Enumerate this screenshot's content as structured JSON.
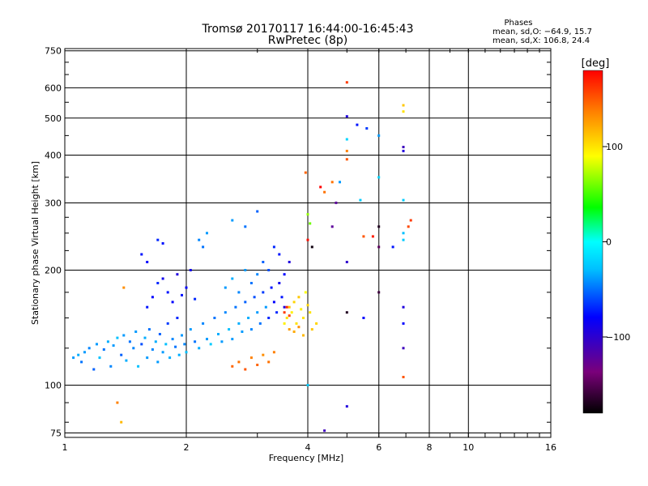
{
  "chart_data": {
    "type": "scatter",
    "title": "Tromsø 20170117 16:44:00-16:45:43",
    "subtitle": "RwPretec (8p)",
    "xlabel": "Frequency [MHz]",
    "ylabel": "Stationary phase Virtual Height [km]",
    "x_scale": "log",
    "y_scale": "log",
    "xlim": [
      1,
      16
    ],
    "ylim": [
      73,
      760
    ],
    "x_ticks": [
      1,
      2,
      4,
      6,
      8,
      10,
      16
    ],
    "x_tick_labels": [
      "1",
      "2",
      "4",
      "6",
      "8",
      "10",
      "16"
    ],
    "y_ticks": [
      75,
      100,
      200,
      300,
      400,
      500,
      600,
      750
    ],
    "y_tick_labels": [
      "75",
      "100",
      "200",
      "300",
      "400",
      "500",
      "600",
      "750"
    ],
    "grid": true,
    "colorbar": {
      "label": "[deg]",
      "range": [
        -180,
        180
      ],
      "ticks": [
        100,
        0,
        -100
      ],
      "tick_labels": [
        "100",
        "0",
        "−100"
      ],
      "colors": [
        "#000000",
        "#800080",
        "#0000ff",
        "#00ffff",
        "#00ff00",
        "#ffff00",
        "#ff8000",
        "#ff0000"
      ]
    },
    "phase_stats": {
      "header": "Phases",
      "line_o": "mean, sd,O: −64.9, 15.7",
      "line_x": "mean, sd,X: 106.8, 24.4"
    },
    "points": [
      {
        "f": 1.05,
        "h": 118,
        "p": -60
      },
      {
        "f": 1.08,
        "h": 120,
        "p": -55
      },
      {
        "f": 1.1,
        "h": 115,
        "p": -70
      },
      {
        "f": 1.12,
        "h": 122,
        "p": -60
      },
      {
        "f": 1.15,
        "h": 125,
        "p": -65
      },
      {
        "f": 1.18,
        "h": 110,
        "p": -75
      },
      {
        "f": 1.2,
        "h": 128,
        "p": -60
      },
      {
        "f": 1.22,
        "h": 118,
        "p": -50
      },
      {
        "f": 1.25,
        "h": 124,
        "p": -70
      },
      {
        "f": 1.28,
        "h": 130,
        "p": -55
      },
      {
        "f": 1.3,
        "h": 112,
        "p": -65
      },
      {
        "f": 1.32,
        "h": 127,
        "p": -60
      },
      {
        "f": 1.35,
        "h": 133,
        "p": -50
      },
      {
        "f": 1.38,
        "h": 120,
        "p": -75
      },
      {
        "f": 1.4,
        "h": 135,
        "p": -60
      },
      {
        "f": 1.42,
        "h": 116,
        "p": -55
      },
      {
        "f": 1.45,
        "h": 130,
        "p": -70
      },
      {
        "f": 1.48,
        "h": 125,
        "p": -65
      },
      {
        "f": 1.5,
        "h": 138,
        "p": -60
      },
      {
        "f": 1.52,
        "h": 112,
        "p": -50
      },
      {
        "f": 1.55,
        "h": 128,
        "p": -80
      },
      {
        "f": 1.58,
        "h": 133,
        "p": -55
      },
      {
        "f": 1.6,
        "h": 118,
        "p": -60
      },
      {
        "f": 1.62,
        "h": 140,
        "p": -70
      },
      {
        "f": 1.65,
        "h": 124,
        "p": -65
      },
      {
        "f": 1.68,
        "h": 130,
        "p": -55
      },
      {
        "f": 1.7,
        "h": 115,
        "p": -60
      },
      {
        "f": 1.72,
        "h": 136,
        "p": -75
      },
      {
        "f": 1.75,
        "h": 122,
        "p": -60
      },
      {
        "f": 1.78,
        "h": 128,
        "p": -50
      },
      {
        "f": 1.8,
        "h": 145,
        "p": -85
      },
      {
        "f": 1.82,
        "h": 118,
        "p": -55
      },
      {
        "f": 1.85,
        "h": 132,
        "p": -65
      },
      {
        "f": 1.88,
        "h": 126,
        "p": -70
      },
      {
        "f": 1.9,
        "h": 150,
        "p": -90
      },
      {
        "f": 1.92,
        "h": 120,
        "p": -55
      },
      {
        "f": 1.95,
        "h": 135,
        "p": -60
      },
      {
        "f": 1.98,
        "h": 128,
        "p": -65
      },
      {
        "f": 2.0,
        "h": 122,
        "p": -50
      },
      {
        "f": 2.05,
        "h": 140,
        "p": -60
      },
      {
        "f": 2.1,
        "h": 130,
        "p": -70
      },
      {
        "f": 2.15,
        "h": 125,
        "p": -55
      },
      {
        "f": 2.2,
        "h": 145,
        "p": -65
      },
      {
        "f": 2.25,
        "h": 132,
        "p": -60
      },
      {
        "f": 2.3,
        "h": 128,
        "p": -45
      },
      {
        "f": 2.35,
        "h": 150,
        "p": -70
      },
      {
        "f": 2.4,
        "h": 136,
        "p": -55
      },
      {
        "f": 2.45,
        "h": 130,
        "p": -60
      },
      {
        "f": 2.5,
        "h": 155,
        "p": -65
      },
      {
        "f": 2.55,
        "h": 140,
        "p": -50
      },
      {
        "f": 2.6,
        "h": 132,
        "p": -60
      },
      {
        "f": 2.65,
        "h": 160,
        "p": -70
      },
      {
        "f": 2.7,
        "h": 145,
        "p": -55
      },
      {
        "f": 2.75,
        "h": 138,
        "p": -60
      },
      {
        "f": 2.8,
        "h": 165,
        "p": -75
      },
      {
        "f": 2.85,
        "h": 150,
        "p": -55
      },
      {
        "f": 2.9,
        "h": 140,
        "p": -65
      },
      {
        "f": 2.95,
        "h": 170,
        "p": -80
      },
      {
        "f": 3.0,
        "h": 155,
        "p": -60
      },
      {
        "f": 3.05,
        "h": 145,
        "p": -70
      },
      {
        "f": 3.1,
        "h": 175,
        "p": -85
      },
      {
        "f": 3.15,
        "h": 160,
        "p": -60
      },
      {
        "f": 3.2,
        "h": 150,
        "p": -90
      },
      {
        "f": 3.25,
        "h": 180,
        "p": -95
      },
      {
        "f": 3.3,
        "h": 165,
        "p": -100
      },
      {
        "f": 3.35,
        "h": 155,
        "p": -90
      },
      {
        "f": 3.4,
        "h": 185,
        "p": -105
      },
      {
        "f": 3.45,
        "h": 170,
        "p": -95
      },
      {
        "f": 3.5,
        "h": 160,
        "p": -110
      },
      {
        "f": 1.6,
        "h": 160,
        "p": -95
      },
      {
        "f": 1.65,
        "h": 170,
        "p": -100
      },
      {
        "f": 1.7,
        "h": 185,
        "p": -90
      },
      {
        "f": 1.75,
        "h": 190,
        "p": -105
      },
      {
        "f": 1.8,
        "h": 175,
        "p": -95
      },
      {
        "f": 1.85,
        "h": 165,
        "p": -100
      },
      {
        "f": 1.9,
        "h": 195,
        "p": -110
      },
      {
        "f": 1.95,
        "h": 172,
        "p": -95
      },
      {
        "f": 2.0,
        "h": 180,
        "p": -100
      },
      {
        "f": 2.05,
        "h": 200,
        "p": -105
      },
      {
        "f": 2.1,
        "h": 168,
        "p": -90
      },
      {
        "f": 2.15,
        "h": 240,
        "p": -65
      },
      {
        "f": 2.2,
        "h": 230,
        "p": -70
      },
      {
        "f": 2.25,
        "h": 250,
        "p": -60
      },
      {
        "f": 1.55,
        "h": 220,
        "p": -95
      },
      {
        "f": 1.6,
        "h": 210,
        "p": -100
      },
      {
        "f": 1.7,
        "h": 240,
        "p": -90
      },
      {
        "f": 1.75,
        "h": 235,
        "p": -95
      },
      {
        "f": 2.5,
        "h": 180,
        "p": -60
      },
      {
        "f": 2.6,
        "h": 190,
        "p": -55
      },
      {
        "f": 2.7,
        "h": 175,
        "p": -65
      },
      {
        "f": 2.8,
        "h": 200,
        "p": -60
      },
      {
        "f": 2.9,
        "h": 185,
        "p": -70
      },
      {
        "f": 3.0,
        "h": 195,
        "p": -65
      },
      {
        "f": 3.1,
        "h": 210,
        "p": -75
      },
      {
        "f": 3.2,
        "h": 200,
        "p": -80
      },
      {
        "f": 2.8,
        "h": 260,
        "p": -70
      },
      {
        "f": 3.0,
        "h": 285,
        "p": -75
      },
      {
        "f": 2.6,
        "h": 270,
        "p": -60
      },
      {
        "f": 3.3,
        "h": 230,
        "p": -90
      },
      {
        "f": 3.4,
        "h": 220,
        "p": -95
      },
      {
        "f": 3.5,
        "h": 195,
        "p": -100
      },
      {
        "f": 3.6,
        "h": 210,
        "p": -110
      },
      {
        "f": 2.6,
        "h": 112,
        "p": 145
      },
      {
        "f": 2.7,
        "h": 115,
        "p": 140
      },
      {
        "f": 2.8,
        "h": 110,
        "p": 150
      },
      {
        "f": 2.9,
        "h": 118,
        "p": 135
      },
      {
        "f": 3.0,
        "h": 113,
        "p": 145
      },
      {
        "f": 3.1,
        "h": 120,
        "p": 130
      },
      {
        "f": 3.2,
        "h": 115,
        "p": 140
      },
      {
        "f": 3.3,
        "h": 122,
        "p": 135
      },
      {
        "f": 3.5,
        "h": 145,
        "p": 95
      },
      {
        "f": 3.55,
        "h": 150,
        "p": 100
      },
      {
        "f": 3.6,
        "h": 160,
        "p": 110
      },
      {
        "f": 3.65,
        "h": 155,
        "p": 95
      },
      {
        "f": 3.7,
        "h": 165,
        "p": 105
      },
      {
        "f": 3.75,
        "h": 145,
        "p": 100
      },
      {
        "f": 3.8,
        "h": 170,
        "p": 110
      },
      {
        "f": 3.85,
        "h": 158,
        "p": 95
      },
      {
        "f": 3.9,
        "h": 150,
        "p": 100
      },
      {
        "f": 3.95,
        "h": 175,
        "p": 90
      },
      {
        "f": 4.0,
        "h": 162,
        "p": 105
      },
      {
        "f": 4.05,
        "h": 155,
        "p": 100
      },
      {
        "f": 3.5,
        "h": 155,
        "p": 160
      },
      {
        "f": 3.55,
        "h": 160,
        "p": 165
      },
      {
        "f": 3.6,
        "h": 152,
        "p": 155
      },
      {
        "f": 3.6,
        "h": 140,
        "p": 125
      },
      {
        "f": 3.7,
        "h": 138,
        "p": 120
      },
      {
        "f": 3.8,
        "h": 142,
        "p": 130
      },
      {
        "f": 3.9,
        "h": 135,
        "p": 115
      },
      {
        "f": 4.1,
        "h": 140,
        "p": 110
      },
      {
        "f": 4.2,
        "h": 145,
        "p": 105
      },
      {
        "f": 1.4,
        "h": 180,
        "p": 130
      },
      {
        "f": 1.35,
        "h": 90,
        "p": 135
      },
      {
        "f": 1.38,
        "h": 80,
        "p": 115
      },
      {
        "f": 3.95,
        "h": 360,
        "p": 145
      },
      {
        "f": 4.0,
        "h": 280,
        "p": 60
      },
      {
        "f": 4.05,
        "h": 265,
        "p": 50
      },
      {
        "f": 4.0,
        "h": 240,
        "p": 175
      },
      {
        "f": 4.1,
        "h": 230,
        "p": -175
      },
      {
        "f": 4.3,
        "h": 330,
        "p": 180
      },
      {
        "f": 4.4,
        "h": 320,
        "p": 140
      },
      {
        "f": 4.7,
        "h": 300,
        "p": -130
      },
      {
        "f": 4.8,
        "h": 340,
        "p": -60
      },
      {
        "f": 5.0,
        "h": 390,
        "p": 150
      },
      {
        "f": 5.0,
        "h": 410,
        "p": 135
      },
      {
        "f": 5.0,
        "h": 440,
        "p": -40
      },
      {
        "f": 5.0,
        "h": 505,
        "p": -110
      },
      {
        "f": 5.0,
        "h": 620,
        "p": 160
      },
      {
        "f": 5.3,
        "h": 480,
        "p": -95
      },
      {
        "f": 5.6,
        "h": 470,
        "p": -85
      },
      {
        "f": 6.0,
        "h": 450,
        "p": -60
      },
      {
        "f": 6.0,
        "h": 350,
        "p": -40
      },
      {
        "f": 6.0,
        "h": 260,
        "p": -170
      },
      {
        "f": 6.0,
        "h": 230,
        "p": -150
      },
      {
        "f": 6.0,
        "h": 175,
        "p": -160
      },
      {
        "f": 5.4,
        "h": 305,
        "p": -45
      },
      {
        "f": 5.5,
        "h": 245,
        "p": 150
      },
      {
        "f": 5.8,
        "h": 245,
        "p": 170
      },
      {
        "f": 6.5,
        "h": 230,
        "p": -95
      },
      {
        "f": 6.9,
        "h": 250,
        "p": -50
      },
      {
        "f": 6.9,
        "h": 240,
        "p": -45
      },
      {
        "f": 6.9,
        "h": 305,
        "p": -45
      },
      {
        "f": 6.9,
        "h": 420,
        "p": -120
      },
      {
        "f": 6.9,
        "h": 410,
        "p": -110
      },
      {
        "f": 6.9,
        "h": 520,
        "p": 100
      },
      {
        "f": 6.9,
        "h": 540,
        "p": 110
      },
      {
        "f": 7.2,
        "h": 270,
        "p": 160
      },
      {
        "f": 7.1,
        "h": 260,
        "p": 155
      },
      {
        "f": 6.9,
        "h": 160,
        "p": -110
      },
      {
        "f": 6.9,
        "h": 145,
        "p": -100
      },
      {
        "f": 6.9,
        "h": 125,
        "p": -120
      },
      {
        "f": 6.9,
        "h": 105,
        "p": 150
      },
      {
        "f": 5.0,
        "h": 155,
        "p": -170
      },
      {
        "f": 5.0,
        "h": 210,
        "p": -115
      },
      {
        "f": 4.6,
        "h": 340,
        "p": 140
      },
      {
        "f": 4.6,
        "h": 260,
        "p": -130
      },
      {
        "f": 5.0,
        "h": 88,
        "p": -110
      },
      {
        "f": 4.4,
        "h": 76,
        "p": -120
      },
      {
        "f": 4.0,
        "h": 100,
        "p": -45
      },
      {
        "f": 5.5,
        "h": 150,
        "p": -100
      }
    ]
  }
}
